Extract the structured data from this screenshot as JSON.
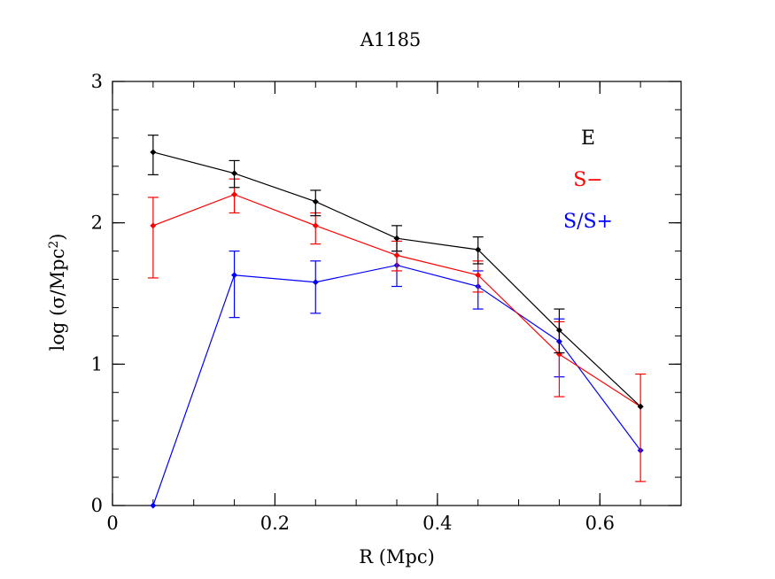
{
  "chart_data": {
    "type": "line",
    "title": "A1185",
    "xlabel": "R (Mpc)",
    "ylabel_prefix": "log (σ/Mpc",
    "ylabel_sup": "2",
    "ylabel_suffix": ")",
    "xlim": [
      0,
      0.7
    ],
    "ylim": [
      0,
      3
    ],
    "xticks": [
      0,
      0.2,
      0.4,
      0.6
    ],
    "xtick_labels": [
      "0",
      "0.2",
      "0.4",
      "0.6"
    ],
    "yticks": [
      0,
      1,
      2,
      3
    ],
    "ytick_labels": [
      "0",
      "1",
      "2",
      "3"
    ],
    "x_minor_step": 0.05,
    "y_minor_step": 0.2,
    "grid": false,
    "legend_position": "top-right",
    "x": [
      0.05,
      0.15,
      0.25,
      0.35,
      0.45,
      0.55,
      0.65
    ],
    "series": [
      {
        "name": "E",
        "color": "#000000",
        "values": [
          2.5,
          2.35,
          2.15,
          1.89,
          1.81,
          1.24,
          0.7
        ],
        "err_low": [
          2.34,
          2.25,
          2.05,
          1.8,
          1.71,
          1.08,
          0.7
        ],
        "err_high": [
          2.62,
          2.44,
          2.23,
          1.98,
          1.9,
          1.39,
          0.7
        ]
      },
      {
        "name": "S−",
        "color": "#ff0000",
        "values": [
          1.98,
          2.2,
          1.98,
          1.77,
          1.63,
          1.07,
          0.7
        ],
        "err_low": [
          1.61,
          2.07,
          1.85,
          1.66,
          1.51,
          0.77,
          0.17
        ],
        "err_high": [
          2.18,
          2.31,
          2.07,
          1.87,
          1.73,
          1.3,
          0.93
        ]
      },
      {
        "name": "S/S+",
        "color": "#0000ff",
        "values": [
          0.0,
          1.63,
          1.58,
          1.7,
          1.55,
          1.16,
          0.39
        ],
        "err_low": [
          0.0,
          1.33,
          1.36,
          1.55,
          1.39,
          0.91,
          0.39
        ],
        "err_high": [
          0.0,
          1.8,
          1.73,
          1.8,
          1.66,
          1.32,
          0.39
        ]
      }
    ]
  }
}
